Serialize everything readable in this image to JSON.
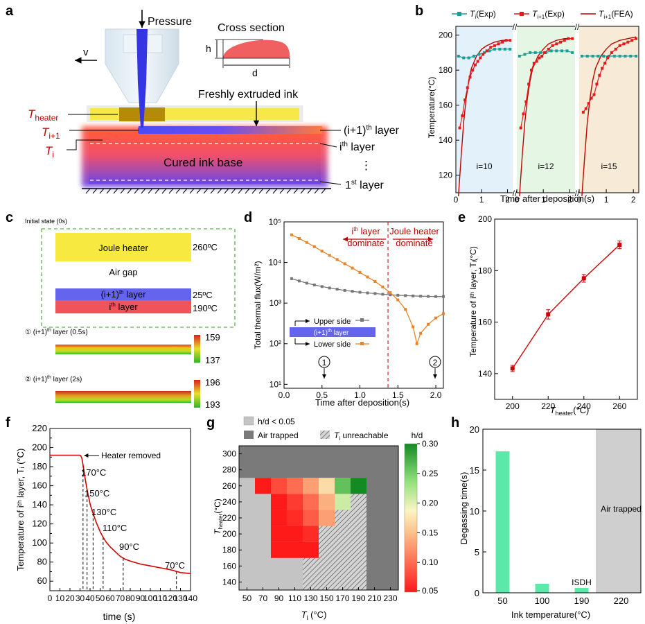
{
  "panels": {
    "a": {
      "letter": "a",
      "pressure": "Pressure",
      "velocity": "v",
      "cross_section": "Cross section",
      "h": "h",
      "d": "d",
      "fresh_ink": "Freshly extruded ink",
      "t_heater": "T",
      "t_heater_sub": "heater",
      "t_ip1": "T",
      "t_ip1_sub": "i+1",
      "t_i": "T",
      "t_i_sub": "i",
      "layer_ip1_a": "(i+1)",
      "layer_ip1_sup": "th",
      "layer_ip1_b": " layer",
      "layer_i_a": "i",
      "layer_i_sup": "th",
      "layer_i_b": " layer",
      "base": "Cured ink base",
      "dots": "⋮",
      "layer_1_a": "1",
      "layer_1_sup": "st",
      "layer_1_b": " layer"
    },
    "b": {
      "letter": "b",
      "legend": [
        {
          "sym": "T",
          "sub": "i",
          "rest": "(Exp)",
          "color": "#1a9e96"
        },
        {
          "sym": "T",
          "sub": "i+1",
          "rest": "(Exp)",
          "color": "#e31a1c"
        },
        {
          "sym": "T",
          "sub": "i+1",
          "rest": "(FEA)",
          "color": "#c00000"
        }
      ],
      "ylabel": "Temperature(°C)",
      "xlabel": "Time after deposition(s)",
      "yticks": [
        "120",
        "140",
        "160",
        "180",
        "200"
      ],
      "xticks": [
        "0",
        "1",
        "2"
      ],
      "sub_labels": [
        "i=10",
        "i=12",
        "i=15"
      ],
      "bg_colors": [
        "#e3f1fb",
        "#e6f6e4",
        "#f7ead6"
      ]
    },
    "c": {
      "letter": "c",
      "initial": "Initial state (0s)",
      "heater": "Joule heater",
      "heater_temp": "260ºC",
      "air_gap": "Air gap",
      "layer_ip1_a": "(i+1)",
      "layer_ip1_sup": "th",
      "layer_ip1_b": " layer",
      "layer_ip1_temp": "25ºC",
      "layer_i_a": "i",
      "layer_i_sup": "th",
      "layer_i_b": " layer",
      "layer_i_temp": "190ºC",
      "state1_a": "① (i+1)",
      "state1_sup": "th",
      "state1_b": " layer (0.5s)",
      "state1_max": "159",
      "state1_min": "137",
      "state2_a": "② (i+1)",
      "state2_sup": "th",
      "state2_b": " layer (2s)",
      "state2_max": "196",
      "state2_min": "193"
    },
    "d": {
      "letter": "d",
      "ylabel": "Total thermal flux(W/m²)",
      "xlabel": "Time after deposition(s)",
      "yticks": [
        "10¹",
        "10²",
        "10³",
        "10⁴",
        "10⁵"
      ],
      "xticks": [
        "0.0",
        "0.5",
        "1.0",
        "1.5",
        "2.0"
      ],
      "left_a": "i",
      "left_sup": "th",
      "left_b": " layer",
      "left_c": "dominate",
      "right_a": "Joule heater",
      "right_b": "dominate",
      "upper": "Upper side",
      "lower": "Lower side",
      "box_a": "(i+1)",
      "box_sup": "th",
      "box_b": " layer",
      "marker1": "1",
      "marker2": "2"
    },
    "e": {
      "letter": "e",
      "ylabel": "Temperature of iᵗʰ layer, Tᵢ(°C)",
      "xlabel_sym": "T",
      "xlabel_sub": "heater",
      "xlabel_rest": "(°C)",
      "xticks": [
        "200",
        "220",
        "240",
        "260"
      ],
      "yticks": [
        "140",
        "160",
        "180",
        "200"
      ]
    },
    "f": {
      "letter": "f",
      "ylabel": "Temperature of iᵗʰ layer, Tᵢ (°C)",
      "xlabel": "time (s)",
      "annotation": "Heater removed",
      "labels": [
        "170°C",
        "150°C",
        "130°C",
        "110°C",
        "90°C",
        "70°C"
      ],
      "xticks": [
        "0",
        "10",
        "20",
        "30",
        "40",
        "50",
        "60",
        "70",
        "80",
        "90",
        "100",
        "110",
        "120",
        "130",
        "140"
      ],
      "yticks": [
        "60",
        "70",
        "80",
        "90",
        "100",
        "110",
        "120",
        "130",
        "140",
        "150",
        "160",
        "170",
        "180",
        "190",
        "200",
        "210",
        "220"
      ]
    },
    "g": {
      "letter": "g",
      "legend_low": "h/d < 0.05",
      "legend_air": "Air trapped",
      "legend_unreach_sym": "T",
      "legend_unreach_sub": "i",
      "legend_unreach_rest": " unreachable",
      "colorbar_title": "h/d",
      "colorbar_ticks": [
        "0.05",
        "0.10",
        "0.15",
        "0.20",
        "0.25",
        "0.30"
      ],
      "ylabel_sym": "T",
      "ylabel_sub": "heater",
      "ylabel_rest": "(°C)",
      "xlabel_sym": "T",
      "xlabel_sub": "i",
      "xlabel_rest": " (°C)",
      "xticks": [
        "50",
        "70",
        "90",
        "110",
        "130",
        "150",
        "170",
        "190",
        "210",
        "230"
      ],
      "yticks": [
        "140",
        "160",
        "180",
        "200",
        "220",
        "240",
        "260",
        "280",
        "300"
      ]
    },
    "h": {
      "letter": "h",
      "ylabel": "Degassing time(s)",
      "xlabel": "Ink temperature(°C)",
      "yticks": [
        "0",
        "5",
        "10",
        "15",
        "20"
      ],
      "xticks": [
        "50",
        "100",
        "190",
        "220"
      ],
      "isdh": "ISDH",
      "air": "Air trapped"
    }
  },
  "chart_data": [
    {
      "panel": "b",
      "type": "line",
      "xlabel": "Time after deposition(s)",
      "ylabel": "Temperature(°C)",
      "ylim": [
        110,
        205
      ],
      "xlim": [
        0,
        2.2
      ],
      "subplots": [
        {
          "label": "i=10",
          "Ti_exp": {
            "x": [
              0.1,
              0.3,
              0.5,
              0.7,
              0.9,
              1.1,
              1.3,
              1.5,
              1.7,
              1.9,
              2.1
            ],
            "y": [
              188,
              187,
              187,
              188,
              189,
              190,
              191,
              192,
              192,
              192,
              192
            ]
          },
          "Ti1_exp": {
            "x": [
              0.15,
              0.25,
              0.35,
              0.45,
              0.55,
              0.65,
              0.75,
              0.85,
              0.95,
              1.05,
              1.2,
              1.35,
              1.5,
              1.65,
              1.8,
              1.95,
              2.1
            ],
            "y": [
              147,
              154,
              163,
              170,
              176,
              180,
              183,
              185,
              187,
              189,
              191,
              193,
              194,
              195,
              196,
              197,
              197
            ]
          },
          "Ti1_fea": {
            "x": [
              0.1,
              0.2,
              0.3,
              0.4,
              0.5,
              0.6,
              0.8,
              1.0,
              1.2,
              1.5,
              1.8,
              2.1
            ],
            "y": [
              108,
              130,
              150,
              164,
              174,
              181,
              188,
              192,
              194,
              196,
              197,
              197
            ]
          }
        },
        {
          "label": "i=12",
          "Ti_exp": {
            "x": [
              0.1,
              0.3,
              0.5,
              0.7,
              0.9,
              1.1,
              1.3,
              1.5,
              1.7,
              1.9,
              2.1
            ],
            "y": [
              188,
              189,
              190,
              190,
              190,
              190,
              191,
              191,
              191,
              191,
              190
            ]
          },
          "Ti1_exp": {
            "x": [
              0.15,
              0.25,
              0.35,
              0.45,
              0.55,
              0.65,
              0.75,
              0.85,
              0.95,
              1.05,
              1.2,
              1.35,
              1.5,
              1.65,
              1.8,
              1.95,
              2.1
            ],
            "y": [
              147,
              155,
              162,
              172,
              180,
              184,
              185,
              187,
              188,
              190,
              192,
              194,
              195,
              196,
              197,
              198,
              198
            ]
          },
          "Ti1_fea": {
            "x": [
              0.1,
              0.2,
              0.3,
              0.4,
              0.5,
              0.6,
              0.8,
              1.0,
              1.2,
              1.5,
              1.8,
              2.1
            ],
            "y": [
              108,
              130,
              150,
              164,
              174,
              181,
              188,
              192,
              195,
              197,
              198,
              198
            ]
          }
        },
        {
          "label": "i=15",
          "Ti_exp": {
            "x": [
              0.1,
              0.3,
              0.5,
              0.7,
              0.9,
              1.1,
              1.3,
              1.5,
              1.7,
              1.9,
              2.1
            ],
            "y": [
              188,
              188,
              188,
              188,
              188,
              188,
              188,
              188,
              188,
              188,
              188
            ]
          },
          "Ti1_exp": {
            "x": [
              0.15,
              0.25,
              0.35,
              0.45,
              0.55,
              0.65,
              0.75,
              0.85,
              0.95,
              1.05,
              1.2,
              1.35,
              1.5,
              1.65,
              1.8,
              1.95,
              2.1
            ],
            "y": [
              156,
              158,
              161,
              164,
              166,
              172,
              177,
              181,
              184,
              187,
              190,
              192,
              194,
              195,
              196,
              197,
              198
            ]
          },
          "Ti1_fea": {
            "x": [
              0.1,
              0.2,
              0.3,
              0.4,
              0.5,
              0.6,
              0.8,
              1.0,
              1.2,
              1.5,
              1.8,
              2.1
            ],
            "y": [
              108,
              130,
              150,
              164,
              174,
              181,
              188,
              192,
              195,
              197,
              198,
              199
            ]
          }
        }
      ]
    },
    {
      "panel": "d",
      "type": "line",
      "yscale": "log",
      "ylim": [
        8,
        100000
      ],
      "xlim": [
        0,
        2.1
      ],
      "series": [
        {
          "name": "Upper side",
          "color": "#777777",
          "x": [
            0.1,
            0.2,
            0.3,
            0.4,
            0.5,
            0.6,
            0.7,
            0.8,
            0.9,
            1.0,
            1.1,
            1.2,
            1.3,
            1.4,
            1.5,
            1.6,
            1.7,
            1.8,
            1.9,
            2.0,
            2.1
          ],
          "y": [
            4000,
            3500,
            3100,
            2800,
            2550,
            2350,
            2200,
            2050,
            1950,
            1850,
            1780,
            1720,
            1650,
            1600,
            1560,
            1530,
            1500,
            1480,
            1460,
            1450,
            1450
          ]
        },
        {
          "name": "Lower side",
          "color": "#e8832a",
          "x": [
            0.1,
            0.2,
            0.3,
            0.4,
            0.5,
            0.6,
            0.7,
            0.8,
            0.9,
            1.0,
            1.1,
            1.2,
            1.3,
            1.4,
            1.5,
            1.6,
            1.7,
            1.75,
            1.8,
            1.9,
            2.0,
            2.1
          ],
          "y": [
            48000,
            39000,
            31000,
            24500,
            19000,
            15000,
            11800,
            9300,
            7300,
            5700,
            4400,
            3400,
            2500,
            1800,
            1200,
            700,
            260,
            100,
            180,
            300,
            430,
            550
          ]
        }
      ],
      "vline": 1.37
    },
    {
      "panel": "e",
      "type": "line",
      "x": [
        200,
        220,
        240,
        260
      ],
      "y": [
        142,
        163,
        177,
        190
      ],
      "err": [
        1.2,
        1.8,
        1.5,
        1.5
      ],
      "xlim": [
        190,
        270
      ],
      "ylim": [
        130,
        200
      ]
    },
    {
      "panel": "f",
      "type": "line",
      "x": [
        0,
        10,
        20,
        30,
        31,
        32,
        33,
        34,
        35,
        36,
        37,
        38,
        39,
        40,
        42,
        44,
        46,
        48,
        50,
        53,
        56,
        60,
        65,
        70,
        75,
        80,
        90,
        100,
        110,
        120,
        130,
        140
      ],
      "y": [
        192,
        192,
        192,
        192,
        191,
        188,
        182,
        175,
        168,
        162,
        156,
        151,
        146,
        141,
        134,
        128,
        122,
        117,
        112,
        106,
        101,
        96,
        91,
        86,
        83,
        81,
        78,
        76,
        74,
        72,
        69,
        68
      ],
      "xlim": [
        0,
        140
      ],
      "ylim": [
        50,
        220
      ],
      "markers_x": [
        33,
        37,
        43,
        53,
        73,
        126
      ]
    },
    {
      "panel": "g",
      "type": "heatmap",
      "xlim": [
        40,
        240
      ],
      "ylim": [
        130,
        310
      ],
      "colorbar": [
        0.05,
        0.3
      ],
      "cells": [
        {
          "x": 70,
          "y": 260,
          "v": 0.05
        },
        {
          "x": 90,
          "y": 260,
          "v": 0.08
        },
        {
          "x": 110,
          "y": 260,
          "v": 0.1
        },
        {
          "x": 130,
          "y": 260,
          "v": 0.13
        },
        {
          "x": 150,
          "y": 260,
          "v": 0.17
        },
        {
          "x": 170,
          "y": 260,
          "v": 0.26
        },
        {
          "x": 190,
          "y": 260,
          "v": 0.3
        },
        {
          "x": 90,
          "y": 240,
          "v": 0.05
        },
        {
          "x": 110,
          "y": 240,
          "v": 0.07
        },
        {
          "x": 130,
          "y": 240,
          "v": 0.1
        },
        {
          "x": 150,
          "y": 240,
          "v": 0.14
        },
        {
          "x": 170,
          "y": 240,
          "v": 0.21
        },
        {
          "x": 90,
          "y": 220,
          "v": 0.05
        },
        {
          "x": 110,
          "y": 220,
          "v": 0.06
        },
        {
          "x": 130,
          "y": 220,
          "v": 0.09
        },
        {
          "x": 150,
          "y": 220,
          "v": 0.13
        },
        {
          "x": 90,
          "y": 200,
          "v": 0.05
        },
        {
          "x": 110,
          "y": 200,
          "v": 0.05
        },
        {
          "x": 130,
          "y": 200,
          "v": 0.06
        },
        {
          "x": 90,
          "y": 180,
          "v": 0.05
        },
        {
          "x": 110,
          "y": 180,
          "v": 0.05
        },
        {
          "x": 130,
          "y": 180,
          "v": 0.05
        }
      ]
    },
    {
      "panel": "h",
      "type": "bar",
      "categories": [
        "50",
        "100",
        "190",
        "220"
      ],
      "values": [
        17.3,
        1.1,
        0.6,
        null
      ],
      "ylim": [
        0,
        20
      ]
    }
  ]
}
